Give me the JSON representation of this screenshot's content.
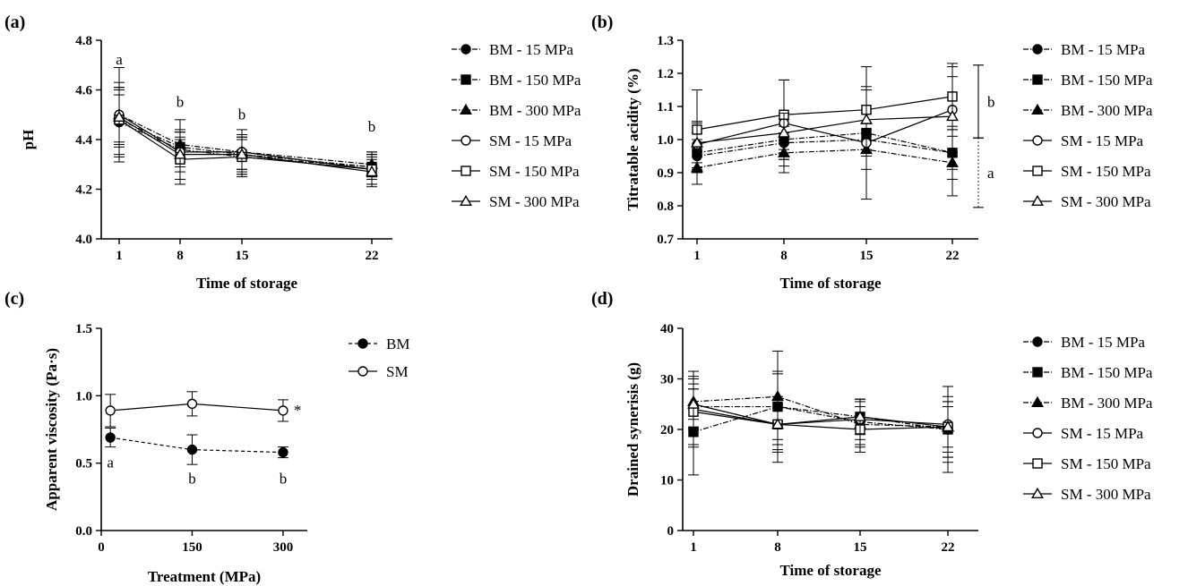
{
  "chart_data": [
    {
      "panel": "(a)",
      "type": "line",
      "xlabel": "Time of storage",
      "ylabel": "pH",
      "x": [
        1,
        8,
        15,
        22
      ],
      "xticks": [
        "1",
        "8",
        "15",
        "22"
      ],
      "ylim": [
        4.0,
        4.8
      ],
      "yticks": [
        "4.0",
        "4.2",
        "4.4",
        "4.6",
        "4.8"
      ],
      "legend_position": "right",
      "series": [
        {
          "name": "BM - 15 MPa",
          "marker": "circle-filled",
          "dash": "dashdot",
          "values": [
            4.47,
            4.36,
            4.33,
            4.29
          ],
          "err": [
            0.13,
            0.07,
            0.07,
            0.05
          ]
        },
        {
          "name": "BM - 150 MPa",
          "marker": "square-filled",
          "dash": "dashdot",
          "values": [
            4.48,
            4.37,
            4.34,
            4.29
          ],
          "err": [
            0.1,
            0.06,
            0.06,
            0.04
          ]
        },
        {
          "name": "BM - 300 MPa",
          "marker": "triangle-filled",
          "dash": "dashdot",
          "values": [
            4.5,
            4.38,
            4.35,
            4.3
          ],
          "err": [
            0.11,
            0.06,
            0.07,
            0.05
          ]
        },
        {
          "name": "SM - 15 MPa",
          "marker": "circle-open",
          "dash": "solid",
          "values": [
            4.5,
            4.35,
            4.35,
            4.28
          ],
          "err": [
            0.19,
            0.13,
            0.09,
            0.07
          ]
        },
        {
          "name": "SM - 150 MPa",
          "marker": "square-open",
          "dash": "solid",
          "values": [
            4.48,
            4.32,
            4.33,
            4.28
          ],
          "err": [
            0.15,
            0.08,
            0.08,
            0.06
          ]
        },
        {
          "name": "SM - 300 MPa",
          "marker": "triangle-open",
          "dash": "solid",
          "values": [
            4.49,
            4.34,
            4.34,
            4.27
          ],
          "err": [
            0.12,
            0.07,
            0.07,
            0.05
          ]
        }
      ],
      "annotations": [
        {
          "text": "a",
          "x": 1,
          "y": 4.72
        },
        {
          "text": "b",
          "x": 8,
          "y": 4.55
        },
        {
          "text": "b",
          "x": 15,
          "y": 4.5
        },
        {
          "text": "b",
          "x": 22,
          "y": 4.45
        }
      ]
    },
    {
      "panel": "(b)",
      "type": "line",
      "xlabel": "Time of storage",
      "ylabel": "Titratable acidity (%)",
      "x": [
        1,
        8,
        15,
        22
      ],
      "xticks": [
        "1",
        "8",
        "15",
        "22"
      ],
      "ylim": [
        0.7,
        1.3
      ],
      "yticks": [
        "0.7",
        "0.8",
        "0.9",
        "1.0",
        "1.1",
        "1.2",
        "1.3"
      ],
      "legend_position": "right",
      "series": [
        {
          "name": "BM - 15 MPa",
          "marker": "circle-filled",
          "dash": "dashdot",
          "values": [
            0.95,
            0.99,
            1.0,
            0.96
          ],
          "err": [
            0.05,
            0.05,
            0.05,
            0.05
          ]
        },
        {
          "name": "BM - 150 MPa",
          "marker": "square-filled",
          "dash": "dashdot",
          "values": [
            0.96,
            1.0,
            1.02,
            0.96
          ],
          "err": [
            0.06,
            0.06,
            0.06,
            0.08
          ]
        },
        {
          "name": "BM - 300 MPa",
          "marker": "triangle-filled",
          "dash": "dashdot",
          "values": [
            0.915,
            0.96,
            0.97,
            0.93
          ],
          "err": [
            0.05,
            0.06,
            0.06,
            0.1
          ]
        },
        {
          "name": "SM - 15 MPa",
          "marker": "circle-open",
          "dash": "solid",
          "values": [
            0.985,
            1.05,
            0.99,
            1.09
          ],
          "err": [
            0.07,
            0.13,
            0.17,
            0.13
          ]
        },
        {
          "name": "SM - 150 MPa",
          "marker": "square-open",
          "dash": "solid",
          "values": [
            1.03,
            1.075,
            1.09,
            1.13
          ],
          "err": [
            0.12,
            0.105,
            0.13,
            0.1
          ]
        },
        {
          "name": "SM - 300 MPa",
          "marker": "triangle-open",
          "dash": "solid",
          "values": [
            0.99,
            1.02,
            1.06,
            1.07
          ],
          "err": [
            0.06,
            0.06,
            0.09,
            0.12
          ]
        }
      ],
      "brackets": [
        {
          "text": "b",
          "from": 1.005,
          "to": 1.225,
          "style": "solid"
        },
        {
          "text": "a",
          "from": 0.795,
          "to": 1.005,
          "style": "dotted"
        }
      ]
    },
    {
      "panel": "(c)",
      "type": "line",
      "xlabel": "Treatment (MPa)",
      "ylabel": "Apparent viscosity (Pa·s)",
      "x": [
        15,
        150,
        300
      ],
      "xticks": [
        "0",
        "150",
        "300"
      ],
      "xtick_values": [
        0,
        150,
        300
      ],
      "xlim": [
        0,
        340
      ],
      "ylim": [
        0.0,
        1.5
      ],
      "yticks": [
        "0.0",
        "0.5",
        "1.0",
        "1.5"
      ],
      "legend_position": "right",
      "series": [
        {
          "name": "BM",
          "marker": "circle-filled",
          "dash": "dashed",
          "values": [
            0.69,
            0.6,
            0.58
          ],
          "err": [
            0.07,
            0.11,
            0.04
          ]
        },
        {
          "name": "SM",
          "marker": "circle-open",
          "dash": "solid",
          "values": [
            0.89,
            0.94,
            0.89
          ],
          "err": [
            0.12,
            0.09,
            0.08
          ]
        }
      ],
      "annotations": [
        {
          "text": "a",
          "x": 15,
          "y": 0.5
        },
        {
          "text": "b",
          "x": 150,
          "y": 0.38
        },
        {
          "text": "b",
          "x": 300,
          "y": 0.38
        },
        {
          "text": "*",
          "x": 324,
          "y": 0.89
        }
      ]
    },
    {
      "panel": "(d)",
      "type": "line",
      "xlabel": "Time of storage",
      "ylabel": "Drained synerisis (g)",
      "x": [
        1,
        8,
        15,
        22
      ],
      "xticks": [
        "1",
        "8",
        "15",
        "22"
      ],
      "ylim": [
        0,
        40
      ],
      "yticks": [
        "0",
        "10",
        "20",
        "30",
        "40"
      ],
      "legend_position": "right",
      "series": [
        {
          "name": "BM - 15 MPa",
          "marker": "circle-filled",
          "dash": "dashdot",
          "values": [
            24.5,
            24.5,
            21.5,
            20.0
          ],
          "err": [
            4.5,
            6.5,
            4.5,
            5.5
          ]
        },
        {
          "name": "BM - 150 MPa",
          "marker": "square-filled",
          "dash": "dashdot",
          "values": [
            19.5,
            24.5,
            22.5,
            20.0
          ],
          "err": [
            8.5,
            11.0,
            3.5,
            8.5
          ]
        },
        {
          "name": "BM - 300 MPa",
          "marker": "triangle-filled",
          "dash": "dashdot",
          "values": [
            25.5,
            26.5,
            21.0,
            20.5
          ],
          "err": [
            5.0,
            5.0,
            4.5,
            5.0
          ]
        },
        {
          "name": "SM - 15 MPa",
          "marker": "circle-open",
          "dash": "solid",
          "values": [
            24.0,
            21.0,
            22.0,
            21.0
          ],
          "err": [
            7.5,
            5.5,
            4.0,
            7.5
          ]
        },
        {
          "name": "SM - 150 MPa",
          "marker": "square-open",
          "dash": "solid",
          "values": [
            23.5,
            21.0,
            20.0,
            20.5
          ],
          "err": [
            6.5,
            5.0,
            4.5,
            6.0
          ]
        },
        {
          "name": "SM - 300 MPa",
          "marker": "triangle-open",
          "dash": "solid",
          "values": [
            25.0,
            21.0,
            22.5,
            20.5
          ],
          "err": [
            3.0,
            4.0,
            3.5,
            4.0
          ]
        }
      ]
    }
  ]
}
